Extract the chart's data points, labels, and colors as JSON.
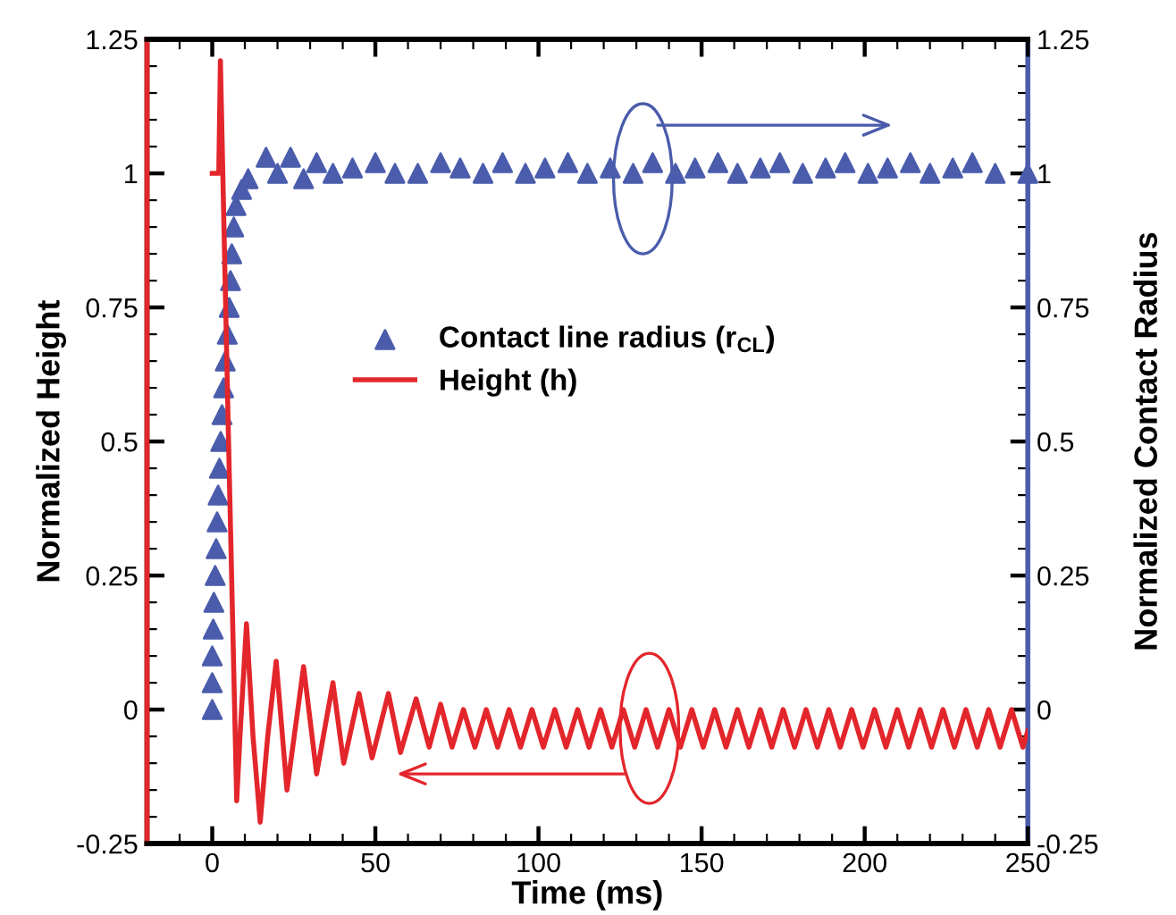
{
  "chart_data": {
    "type": "line",
    "xlabel": "Time (ms)",
    "ylabel": "Normalized Height",
    "y2label": "Normalized Contact Radius",
    "xlim": [
      -20,
      250
    ],
    "xticks": [
      0,
      50,
      100,
      150,
      200,
      250
    ],
    "ylim": [
      -0.25,
      1.25
    ],
    "yticks": [
      -0.25,
      0,
      0.25,
      0.5,
      0.75,
      1,
      1.25
    ],
    "y2lim": [
      -0.25,
      1.25
    ],
    "y2ticks": [
      -0.25,
      0,
      0.25,
      0.5,
      0.75,
      1,
      1.25
    ],
    "legend": "center",
    "grid": false,
    "series": [
      {
        "name": "Contact line radius (r$_{CL}$)",
        "type": "scatter",
        "marker": "triangle",
        "axis": "y2",
        "color": "#4a5cab",
        "x": [
          0,
          0,
          0,
          0.3,
          0.5,
          0.9,
          1.2,
          1.5,
          1.8,
          2.2,
          2.6,
          3.0,
          3.5,
          4.0,
          4.6,
          5.2,
          5.6,
          6.0,
          6.6,
          7.3,
          9,
          11,
          16.5,
          20,
          24,
          28,
          32,
          37,
          43,
          50,
          56,
          63,
          70,
          76,
          83,
          89,
          96,
          102,
          109,
          115,
          122,
          129,
          135,
          142,
          148,
          155,
          161,
          168,
          174,
          181,
          188,
          194,
          201,
          207,
          214,
          220,
          227,
          233,
          240,
          250
        ],
        "values": [
          0,
          0.05,
          0.1,
          0.15,
          0.2,
          0.25,
          0.3,
          0.35,
          0.4,
          0.45,
          0.5,
          0.55,
          0.6,
          0.65,
          0.7,
          0.75,
          0.8,
          0.85,
          0.9,
          0.94,
          0.97,
          0.99,
          1.03,
          1.0,
          1.03,
          0.99,
          1.02,
          1.0,
          1.01,
          1.02,
          1.0,
          1.0,
          1.02,
          1.01,
          1.0,
          1.02,
          1.0,
          1.01,
          1.02,
          1.0,
          1.01,
          1.0,
          1.02,
          1.0,
          1.01,
          1.02,
          1.0,
          1.01,
          1.02,
          1.0,
          1.01,
          1.02,
          1.0,
          1.01,
          1.02,
          1.0,
          1.01,
          1.02,
          1.0,
          1.0
        ]
      },
      {
        "name": "Height (h)",
        "marker": "none",
        "line_style": "solid",
        "color": "#e3262b",
        "x": [
          0,
          2,
          2.5,
          5,
          7.5,
          8.5,
          10.5,
          12.5,
          14.7,
          17,
          19.6,
          22.9,
          28,
          32,
          37,
          40.3,
          45,
          49,
          54,
          57.7,
          62.5,
          66.5,
          70,
          73.5,
          77,
          80.5,
          84,
          87.5,
          91,
          94.5,
          98,
          101.5,
          105,
          108.5,
          112,
          115.5,
          119,
          122.5,
          126,
          129.5,
          133,
          136.5,
          140,
          143.5,
          147,
          150.5,
          154,
          157.5,
          161,
          164.5,
          168,
          171.5,
          175,
          178.5,
          182,
          185.5,
          189,
          192.5,
          196,
          199.5,
          203,
          206.5,
          210,
          213.5,
          217,
          220.5,
          224,
          227.5,
          231,
          234.5,
          238,
          241.5,
          245,
          248.5,
          250
        ],
        "values": [
          1.0,
          1.0,
          1.21,
          0.5,
          -0.17,
          -0.05,
          0.16,
          -0.05,
          -0.21,
          -0.05,
          0.09,
          -0.15,
          0.08,
          -0.12,
          0.05,
          -0.1,
          0.03,
          -0.09,
          0.03,
          -0.08,
          0.02,
          -0.07,
          0.01,
          -0.07,
          0.0,
          -0.07,
          0.0,
          -0.07,
          0.0,
          -0.07,
          0.0,
          -0.07,
          0.0,
          -0.07,
          0.0,
          -0.07,
          0.0,
          -0.07,
          0.0,
          -0.07,
          0.0,
          -0.07,
          0.0,
          -0.07,
          0.0,
          -0.07,
          0.0,
          -0.07,
          0.0,
          -0.07,
          0.0,
          -0.07,
          0.0,
          -0.07,
          0.0,
          -0.07,
          0.0,
          -0.07,
          0.0,
          -0.07,
          0.0,
          -0.07,
          0.0,
          -0.07,
          0.0,
          -0.07,
          0.0,
          -0.07,
          0.0,
          -0.07,
          0.0,
          -0.07,
          0.0,
          -0.07,
          -0.04
        ]
      }
    ]
  }
}
